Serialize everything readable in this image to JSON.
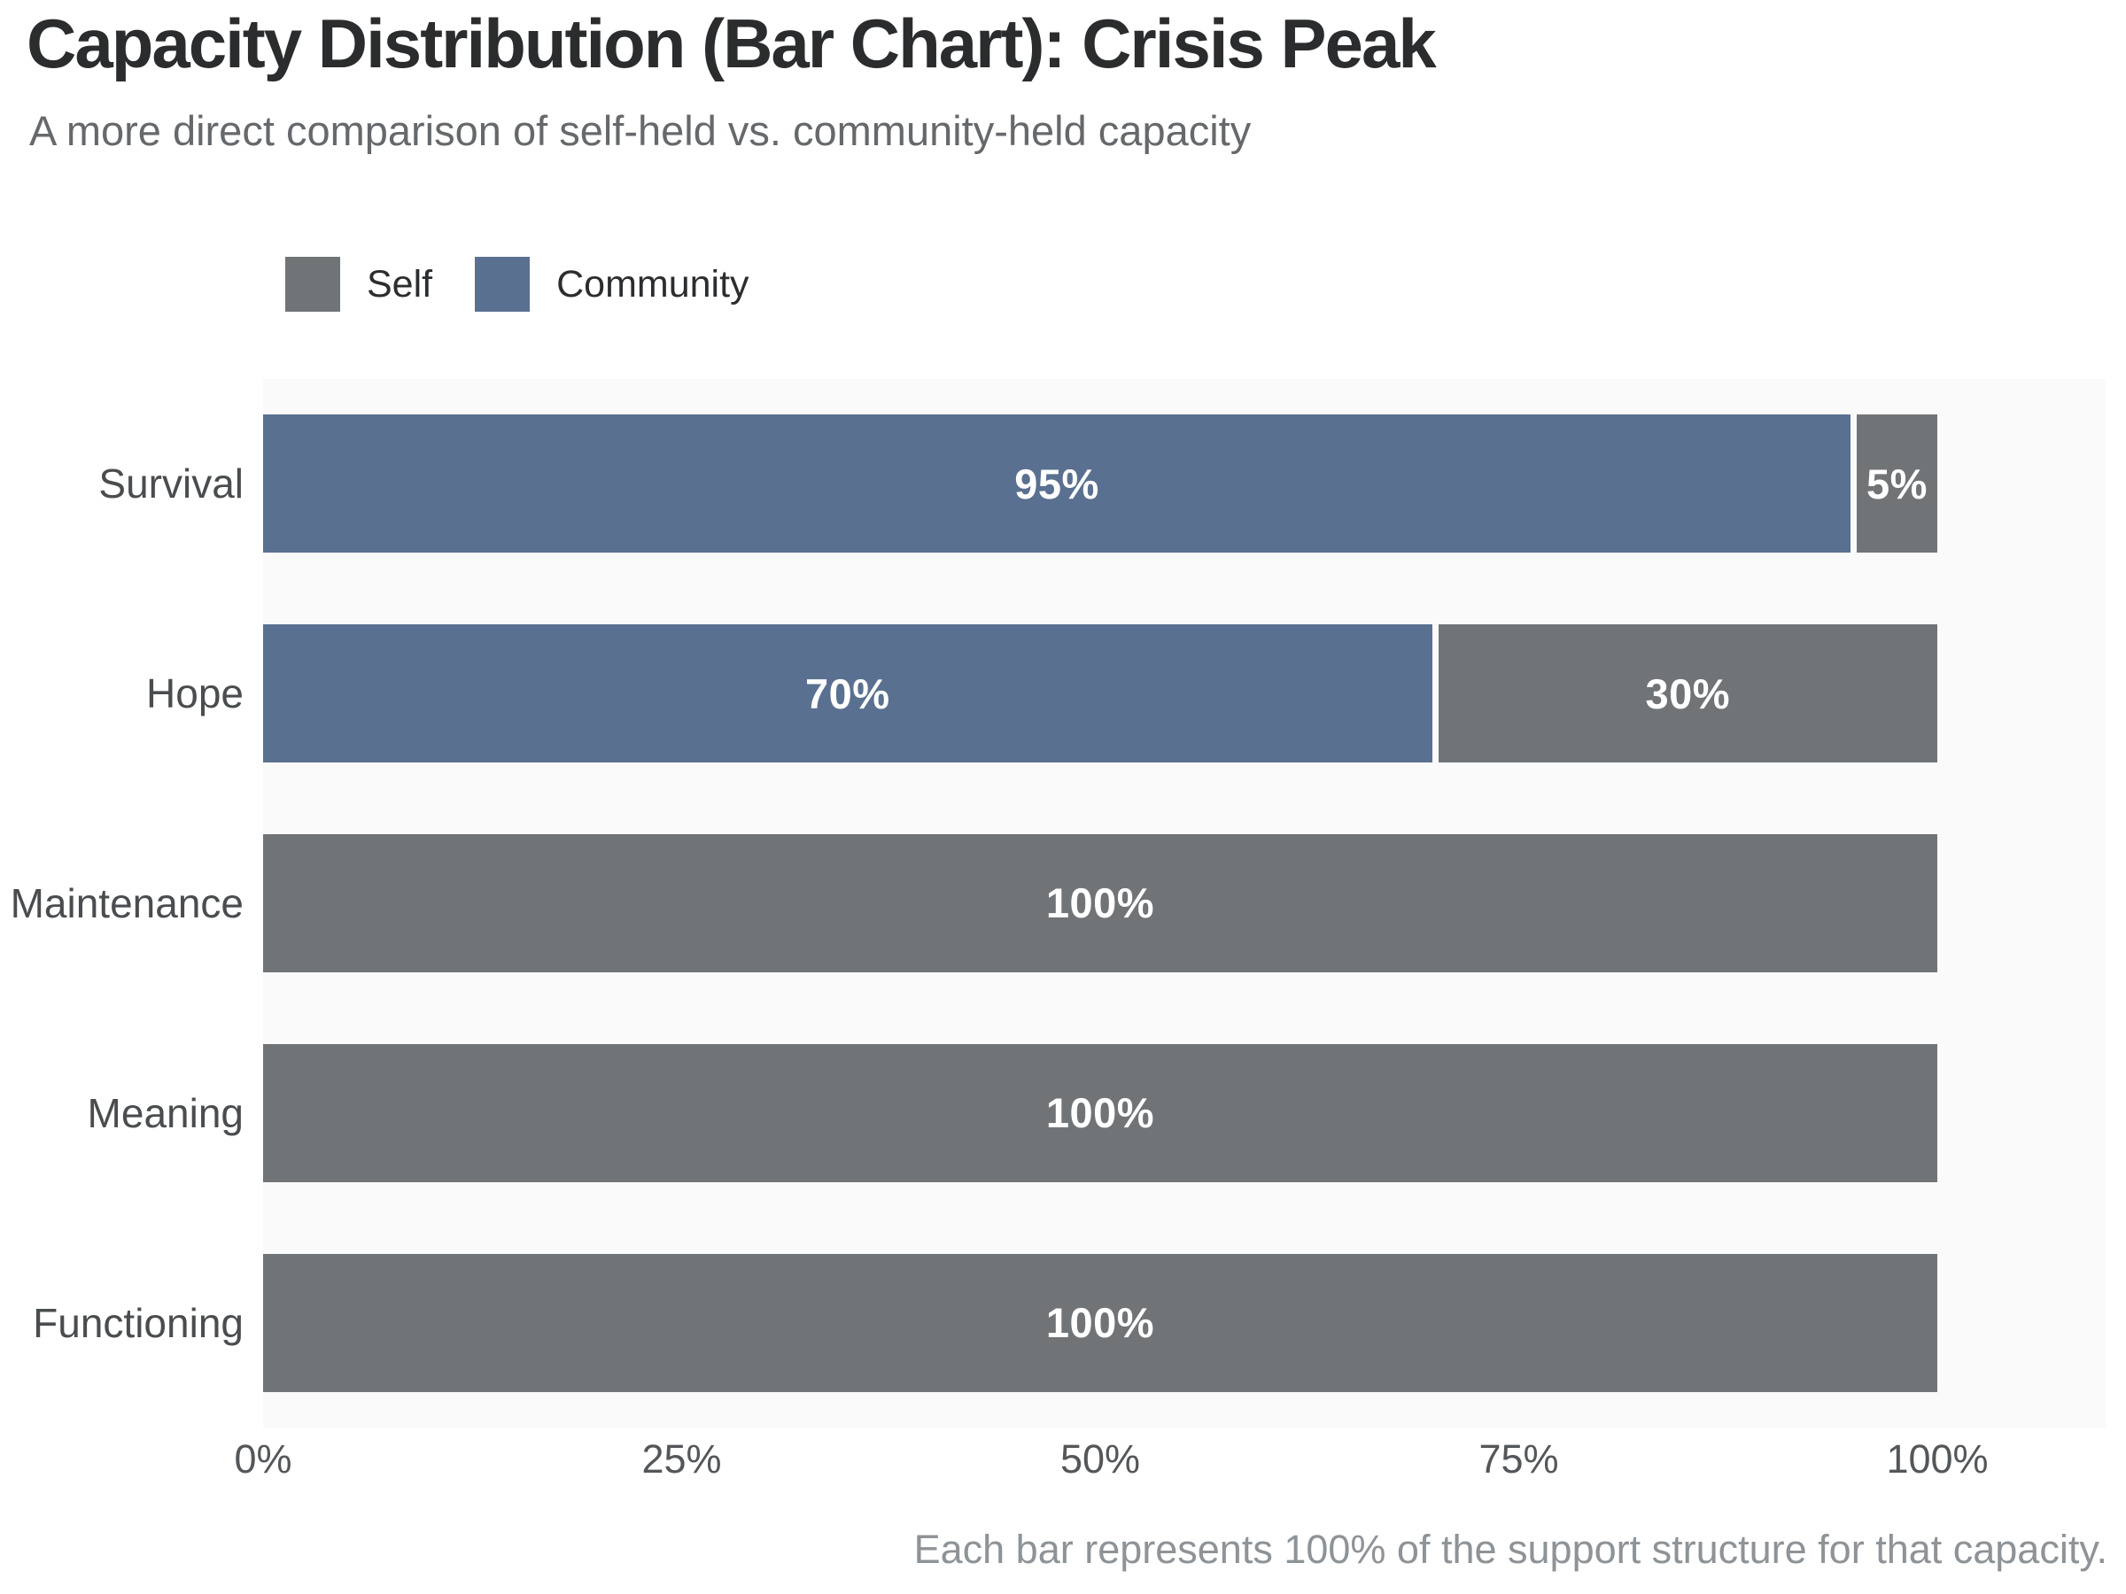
{
  "header": {
    "title": "Capacity Distribution (Bar Chart): Crisis Peak",
    "subtitle": "A more direct comparison of self-held vs. community-held capacity"
  },
  "legend": {
    "items": [
      {
        "label": "Self",
        "color": "#717477"
      },
      {
        "label": "Community",
        "color": "#5a7090"
      }
    ]
  },
  "colors": {
    "self": "#717477",
    "community": "#5a7090",
    "panel_background": "#fafafa",
    "bar_label_text": "#ffffff",
    "title_text": "#2a2c2e",
    "subtitle_text": "#66696c",
    "category_text": "#4a4d4f",
    "tick_text": "#54575a",
    "footnote_text": "#8e9397"
  },
  "chart_data": {
    "type": "bar",
    "orientation": "horizontal",
    "stacked": true,
    "title": "Capacity Distribution (Bar Chart): Crisis Peak",
    "subtitle": "A more direct comparison of self-held vs. community-held capacity",
    "categories": [
      "Survival",
      "Hope",
      "Maintenance",
      "Meaning",
      "Functioning"
    ],
    "series": [
      {
        "name": "Community",
        "color": "#5a7090",
        "values": [
          95,
          70,
          0,
          0,
          0
        ]
      },
      {
        "name": "Self",
        "color": "#717477",
        "values": [
          5,
          30,
          100,
          100,
          100
        ]
      }
    ],
    "bar_labels": [
      "95%",
      "5%",
      "70%",
      "30%",
      "100%",
      "100%",
      "100%"
    ],
    "xlim": [
      0,
      100
    ],
    "x_ticks": [
      "0%",
      "25%",
      "50%",
      "75%",
      "100%"
    ],
    "grid": false,
    "legend_position": "top-left",
    "footnote": "Each bar represents 100% of the support structure for that capacity."
  }
}
